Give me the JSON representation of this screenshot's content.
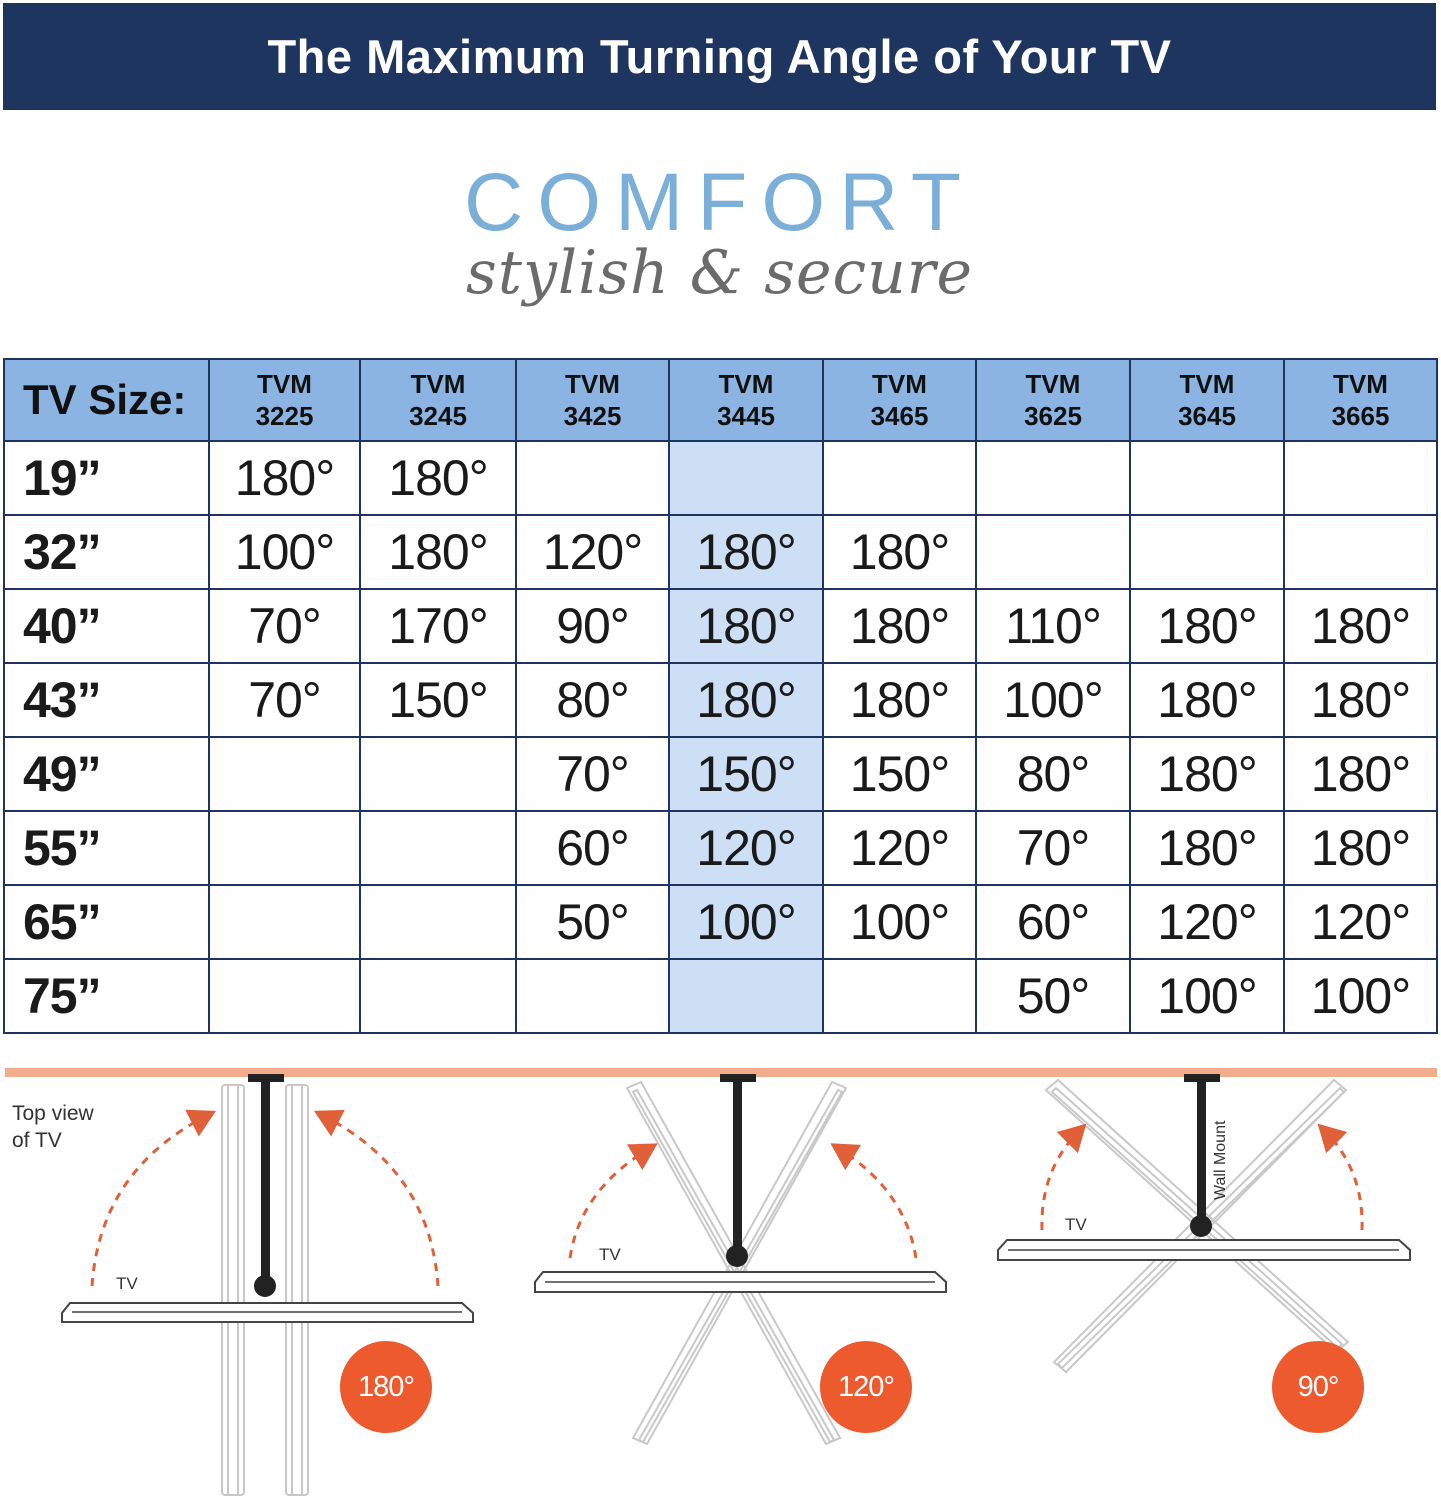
{
  "title": "The Maximum Turning Angle of Your TV",
  "brand": {
    "name": "COMFORT",
    "tagline": "stylish & secure"
  },
  "table": {
    "size_header": "TV Size:",
    "models": [
      {
        "line1": "TVM",
        "line2": "3225"
      },
      {
        "line1": "TVM",
        "line2": "3245"
      },
      {
        "line1": "TVM",
        "line2": "3425"
      },
      {
        "line1": "TVM",
        "line2": "3445"
      },
      {
        "line1": "TVM",
        "line2": "3465"
      },
      {
        "line1": "TVM",
        "line2": "3625"
      },
      {
        "line1": "TVM",
        "line2": "3645"
      },
      {
        "line1": "TVM",
        "line2": "3665"
      }
    ],
    "rows": [
      {
        "size": "19”",
        "values": [
          "180°",
          "180°",
          "",
          "",
          "",
          "",
          "",
          ""
        ]
      },
      {
        "size": "32”",
        "values": [
          "100°",
          "180°",
          "120°",
          "180°",
          "180°",
          "",
          "",
          ""
        ]
      },
      {
        "size": "40”",
        "values": [
          "70°",
          "170°",
          "90°",
          "180°",
          "180°",
          "110°",
          "180°",
          "180°"
        ]
      },
      {
        "size": "43”",
        "values": [
          "70°",
          "150°",
          "80°",
          "180°",
          "180°",
          "100°",
          "180°",
          "180°"
        ]
      },
      {
        "size": "49”",
        "values": [
          "",
          "",
          "70°",
          "150°",
          "150°",
          "80°",
          "180°",
          "180°"
        ]
      },
      {
        "size": "55”",
        "values": [
          "",
          "",
          "60°",
          "120°",
          "120°",
          "70°",
          "180°",
          "180°"
        ]
      },
      {
        "size": "65”",
        "values": [
          "",
          "",
          "50°",
          "100°",
          "100°",
          "60°",
          "120°",
          "120°"
        ]
      },
      {
        "size": "75”",
        "values": [
          "",
          "",
          "",
          "",
          "",
          "50°",
          "100°",
          "100°"
        ]
      }
    ]
  },
  "diagram": {
    "note_line1": "Top view",
    "note_line2": "of TV",
    "tv_label": "TV",
    "wall_mount_label": "Wall Mount",
    "badges": [
      "180°",
      "120°",
      "90°"
    ]
  },
  "colors": {
    "navy": "#1e3560",
    "header_blue": "#8cb4e2",
    "highlight_blue": "#cddff5",
    "comfort_blue": "#7bafd8",
    "wall_orange": "#f2ad8c",
    "badge_orange": "#ec5a2e"
  }
}
